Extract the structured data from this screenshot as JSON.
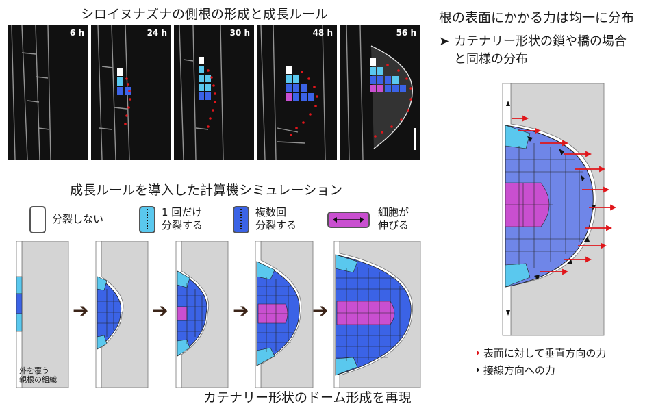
{
  "header": {
    "top_title": "シロイヌナズナの側根の形成と成長ルール",
    "sim_title": "成長ルールを導入した計算機シミュレーション",
    "bottom_caption": "カテナリー形状のドーム形成を再現"
  },
  "micrographs": [
    {
      "time": "6 h"
    },
    {
      "time": "24 h"
    },
    {
      "time": "30 h"
    },
    {
      "time": "48 h"
    },
    {
      "time": "56 h"
    }
  ],
  "legend": {
    "no_division": "分裂しない",
    "divide_once_line1": "1 回だけ",
    "divide_once_line2": "分裂する",
    "divide_many_line1": "複数回",
    "divide_many_line2": "分裂する",
    "elongate_line1": "細胞が",
    "elongate_line2": "伸びる"
  },
  "sim_note": {
    "line1": "外を覆う",
    "line2": "親根の組織"
  },
  "right_panel": {
    "title": "根の表面にかかる力は均一に分布",
    "bullet_line1": "カテナリー形状の鎖や橋の場合",
    "bullet_line2": "と同様の分布",
    "legend_red": "表面に対して垂直方向の力",
    "legend_black": "接線方向への力"
  },
  "colors": {
    "light_blue": "#5ac8ee",
    "blue": "#3b63e6",
    "magenta": "#c94fd0",
    "periwinkle": "#6f86e8",
    "gray": "#d4d4d4",
    "red_arrow": "#e0161b"
  }
}
